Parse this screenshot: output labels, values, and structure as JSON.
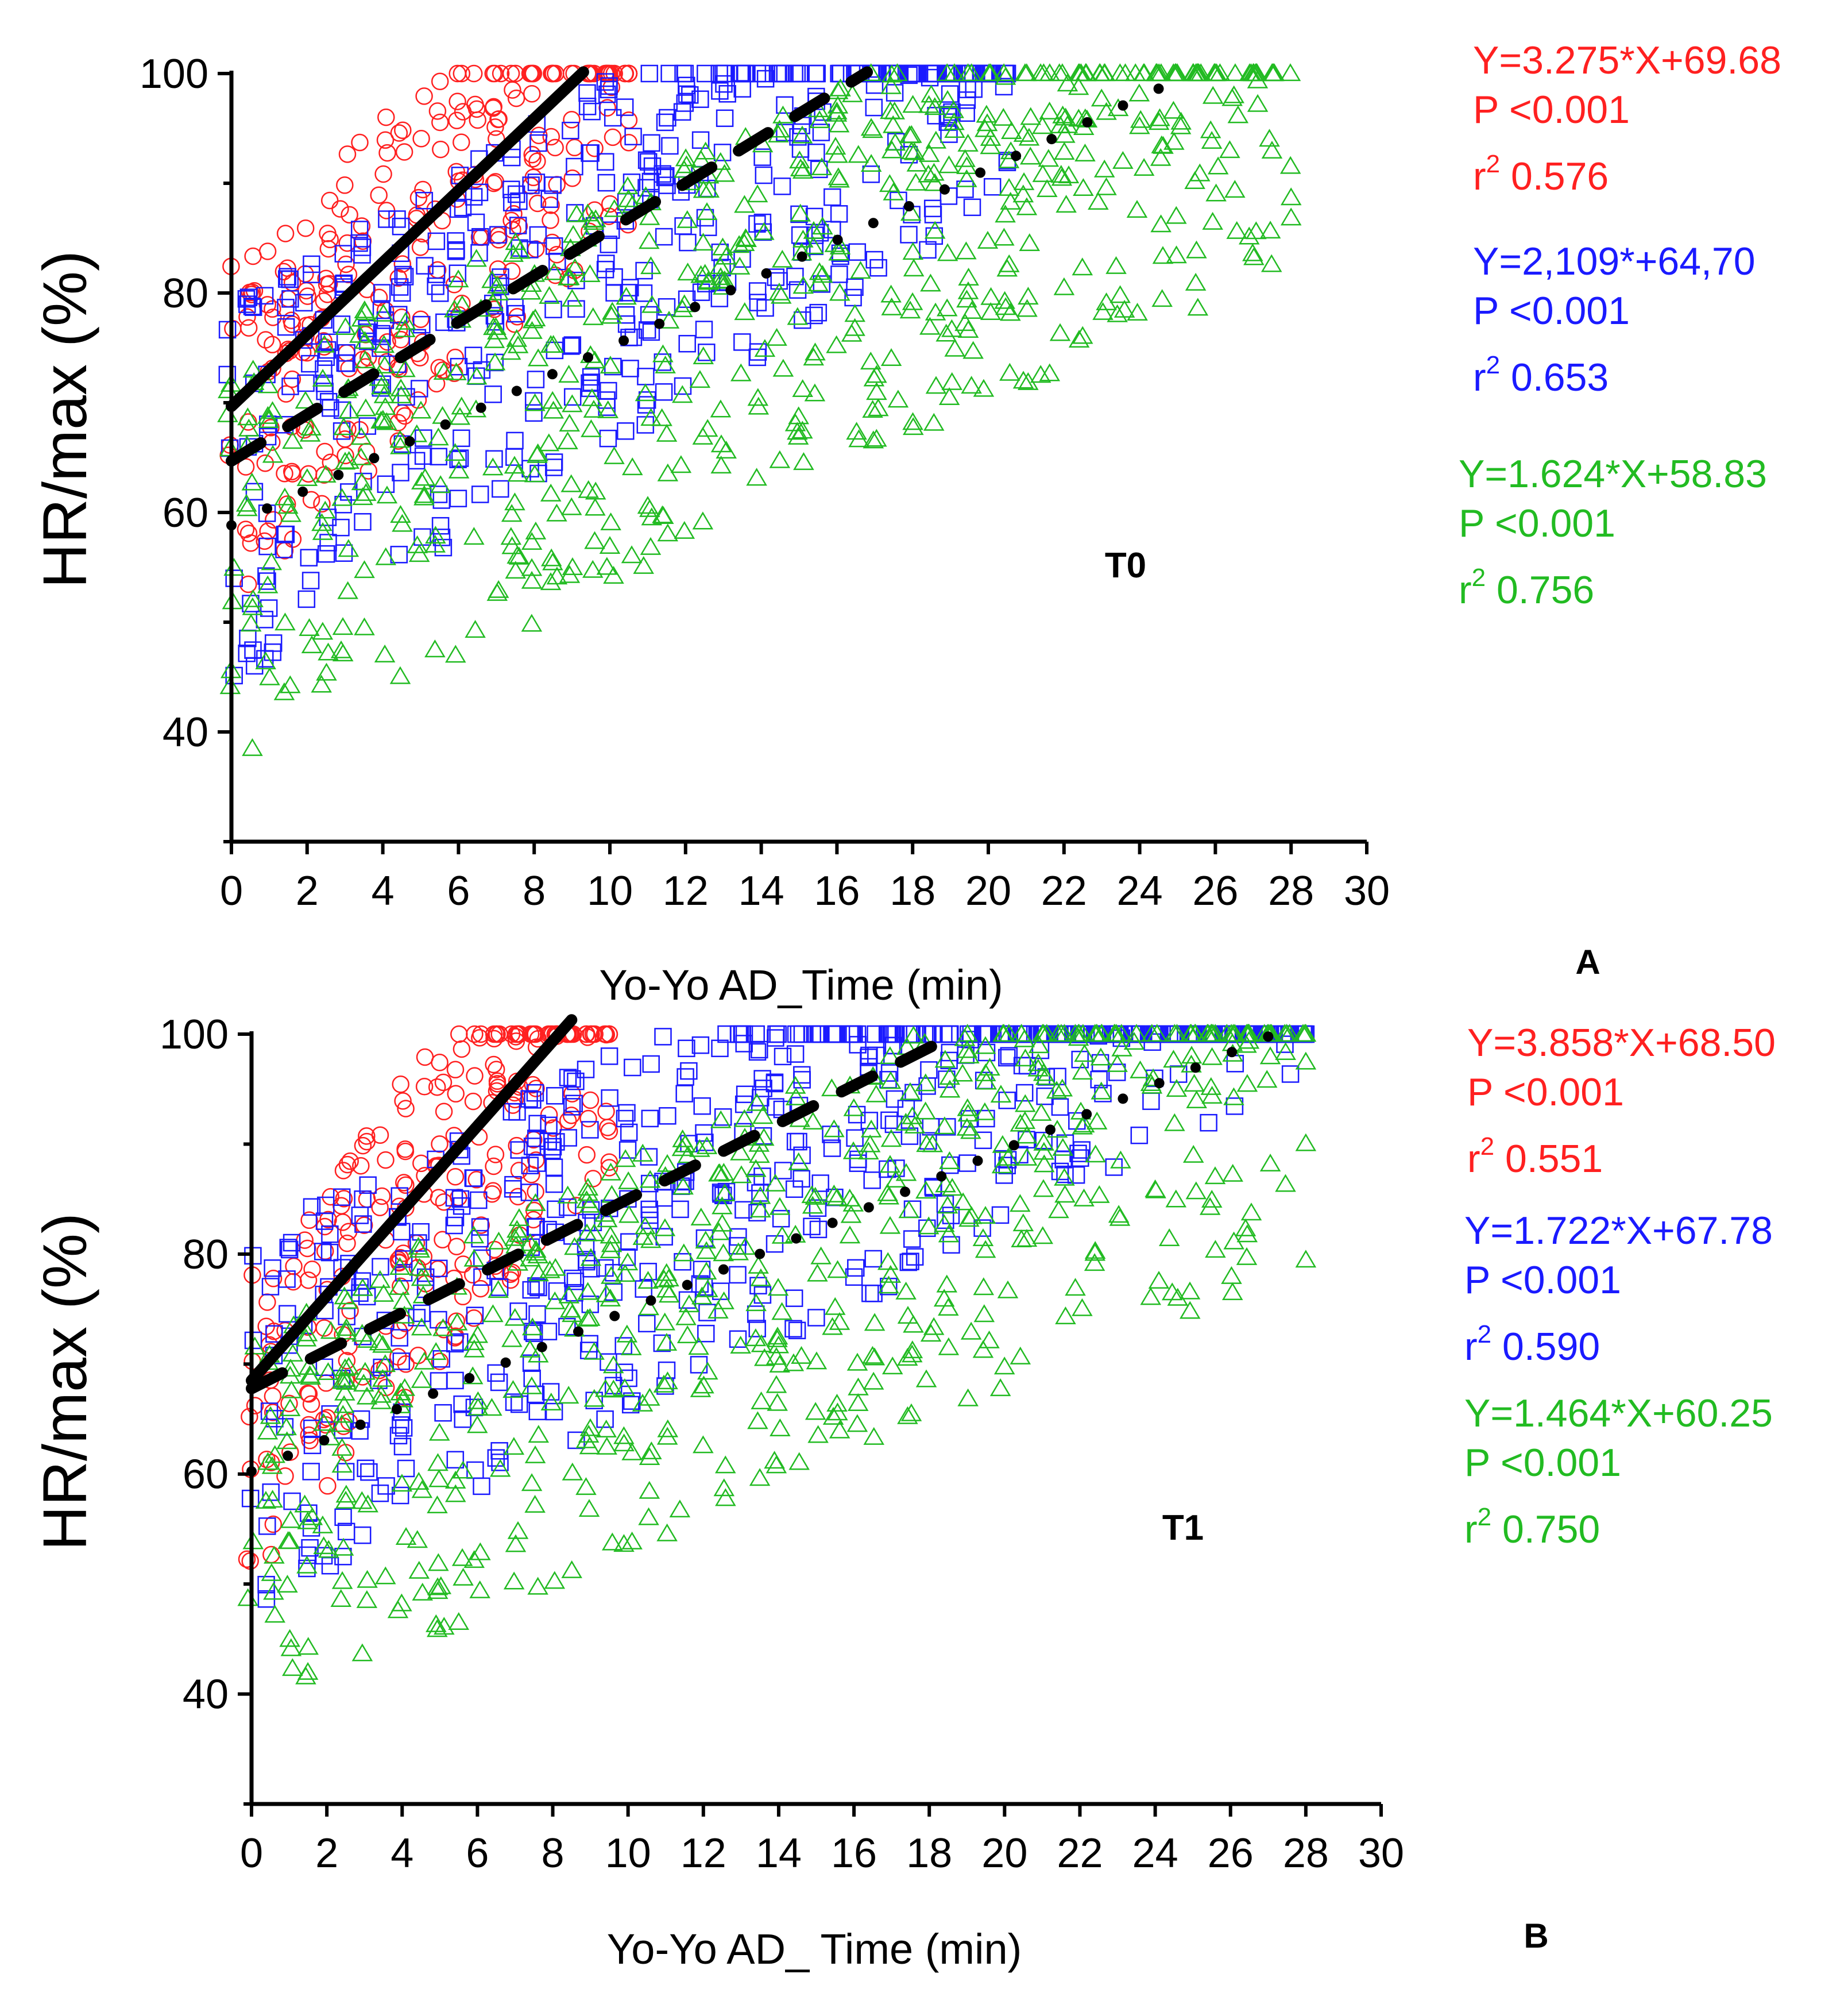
{
  "chart_data": [
    {
      "type": "scatter",
      "panel_tag": "T0",
      "panel_letter": "A",
      "xlabel": "Yo-Yo AD_Time (min)",
      "ylabel": "HR/max (%)",
      "xlim": [
        0,
        30
      ],
      "ylim": [
        30,
        100
      ],
      "xticks": [
        "0",
        "2",
        "4",
        "6",
        "8",
        "10",
        "12",
        "14",
        "16",
        "18",
        "20",
        "22",
        "24",
        "26",
        "28",
        "30"
      ],
      "yticks": [
        "40",
        "60",
        "80",
        "100"
      ],
      "series": [
        {
          "name": "red-circles",
          "marker": "circle",
          "color": "#ff2020",
          "xmin": 0,
          "xmax": 10.5,
          "fit_slope": 3.275,
          "fit_intercept": 69.68,
          "fit_style": "solid",
          "fit_x": [
            0,
            9.3
          ],
          "spread_low": 18,
          "spread_high": 13
        },
        {
          "name": "blue-squares",
          "marker": "square",
          "color": "#1a1aff",
          "xmin": 0,
          "xmax": 20.5,
          "fit_slope": 2.109,
          "fit_intercept": 64.7,
          "fit_style": "dashed",
          "fit_x": [
            0,
            16.8
          ],
          "spread_low": 20,
          "spread_high": 14
        },
        {
          "name": "green-triangles",
          "marker": "triangle",
          "color": "#22bb22",
          "xmin": 0,
          "xmax": 28,
          "fit_slope": 1.624,
          "fit_intercept": 58.83,
          "fit_style": "dotted",
          "fit_x": [
            0,
            24.5
          ],
          "spread_low": 22,
          "spread_high": 14
        }
      ],
      "annotations": [
        {
          "color": "#ff2020",
          "equation": "Y=3.275*X+69.68",
          "p": "P <0.001",
          "r_base": "r",
          "r_exp": "2",
          "r_value": " 0.576"
        },
        {
          "color": "#1a1aff",
          "equation": "Y=2,109*+64,70",
          "p": "P <0.001",
          "r_base": "r",
          "r_exp": "2",
          "r_value": " 0.653"
        },
        {
          "color": "#22bb22",
          "equation": "Y=1.624*X+58.83",
          "p": "P <0.001",
          "r_base": "r",
          "r_exp": "2",
          "r_value": " 0.756"
        }
      ]
    },
    {
      "type": "scatter",
      "panel_tag": "T1",
      "panel_letter": "B",
      "xlabel": "Yo-Yo AD_ Time (min)",
      "ylabel": "HR/max (%)",
      "xlim": [
        0,
        30
      ],
      "ylim": [
        30,
        100
      ],
      "xticks": [
        "0",
        "2",
        "4",
        "6",
        "8",
        "10",
        "12",
        "14",
        "16",
        "18",
        "20",
        "22",
        "24",
        "26",
        "28",
        "30"
      ],
      "yticks": [
        "40",
        "60",
        "80",
        "100"
      ],
      "series": [
        {
          "name": "red-circles",
          "marker": "circle",
          "color": "#ff2020",
          "xmin": 0,
          "xmax": 9.5,
          "fit_slope": 3.858,
          "fit_intercept": 68.5,
          "fit_style": "solid",
          "fit_x": [
            0,
            8.5
          ],
          "spread_low": 18,
          "spread_high": 12
        },
        {
          "name": "blue-squares",
          "marker": "square",
          "color": "#1a1aff",
          "xmin": 0,
          "xmax": 28,
          "fit_slope": 1.722,
          "fit_intercept": 67.78,
          "fit_style": "dashed",
          "fit_x": [
            0,
            18.7
          ],
          "spread_low": 20,
          "spread_high": 14
        },
        {
          "name": "green-triangles",
          "marker": "triangle",
          "color": "#22bb22",
          "xmin": 0,
          "xmax": 28,
          "fit_slope": 1.464,
          "fit_intercept": 60.25,
          "fit_style": "dotted",
          "fit_x": [
            0,
            27
          ],
          "spread_low": 22,
          "spread_high": 14
        }
      ],
      "annotations": [
        {
          "color": "#ff2020",
          "equation": "Y=3.858*X+68.50",
          "p": "P <0.001",
          "r_base": "r",
          "r_exp": "2",
          "r_value": " 0.551"
        },
        {
          "color": "#1a1aff",
          "equation": "Y=1.722*X+67.78",
          "p": "P <0.001",
          "r_base": "r",
          "r_exp": "2",
          "r_value": " 0.590"
        },
        {
          "color": "#22bb22",
          "equation": "Y=1.464*X+60.25",
          "p": "P <0.001",
          "r_base": "r",
          "r_exp": "2",
          "r_value": " 0.750"
        }
      ]
    }
  ]
}
